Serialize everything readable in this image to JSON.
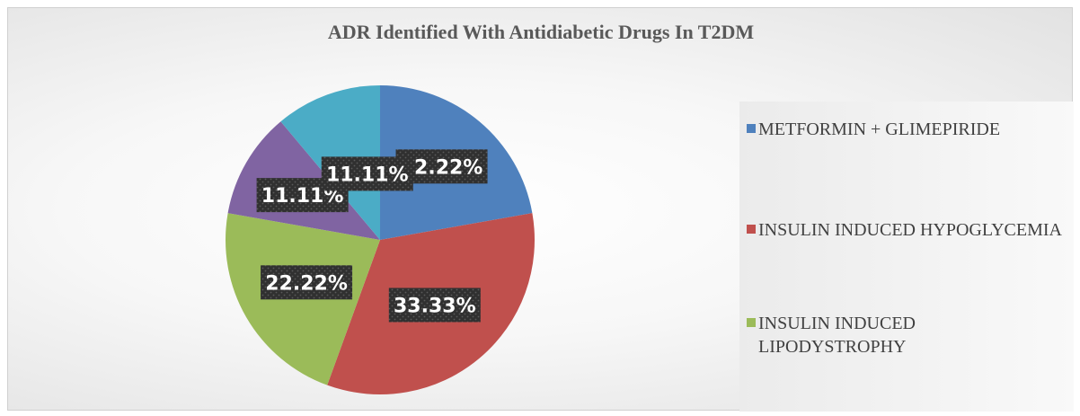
{
  "chart_data": {
    "type": "pie",
    "title": "ADR Identified With Antidiabetic Drugs In T2DM",
    "slices": [
      {
        "name": "METFORMIN + GLIMEPIRIDE",
        "value": 22.22,
        "label": "22.22%",
        "color": "#4f81bd",
        "in_legend": true
      },
      {
        "name": "INSULIN INDUCED HYPOGLYCEMIA",
        "value": 33.33,
        "label": "33.33%",
        "color": "#c0504d",
        "in_legend": true
      },
      {
        "name": "INSULIN INDUCED LIPODYSTROPHY",
        "value": 22.22,
        "label": "22.22%",
        "color": "#9bbb59",
        "in_legend": true
      },
      {
        "name": "",
        "value": 11.11,
        "label": "11.11%",
        "color": "#8064a2",
        "in_legend": false
      },
      {
        "name": "",
        "value": 11.11,
        "label": "11.11%",
        "color": "#4bacc6",
        "in_legend": false
      }
    ],
    "legend_position": "right",
    "data_label_style": "white bold text on dark patterned box"
  }
}
